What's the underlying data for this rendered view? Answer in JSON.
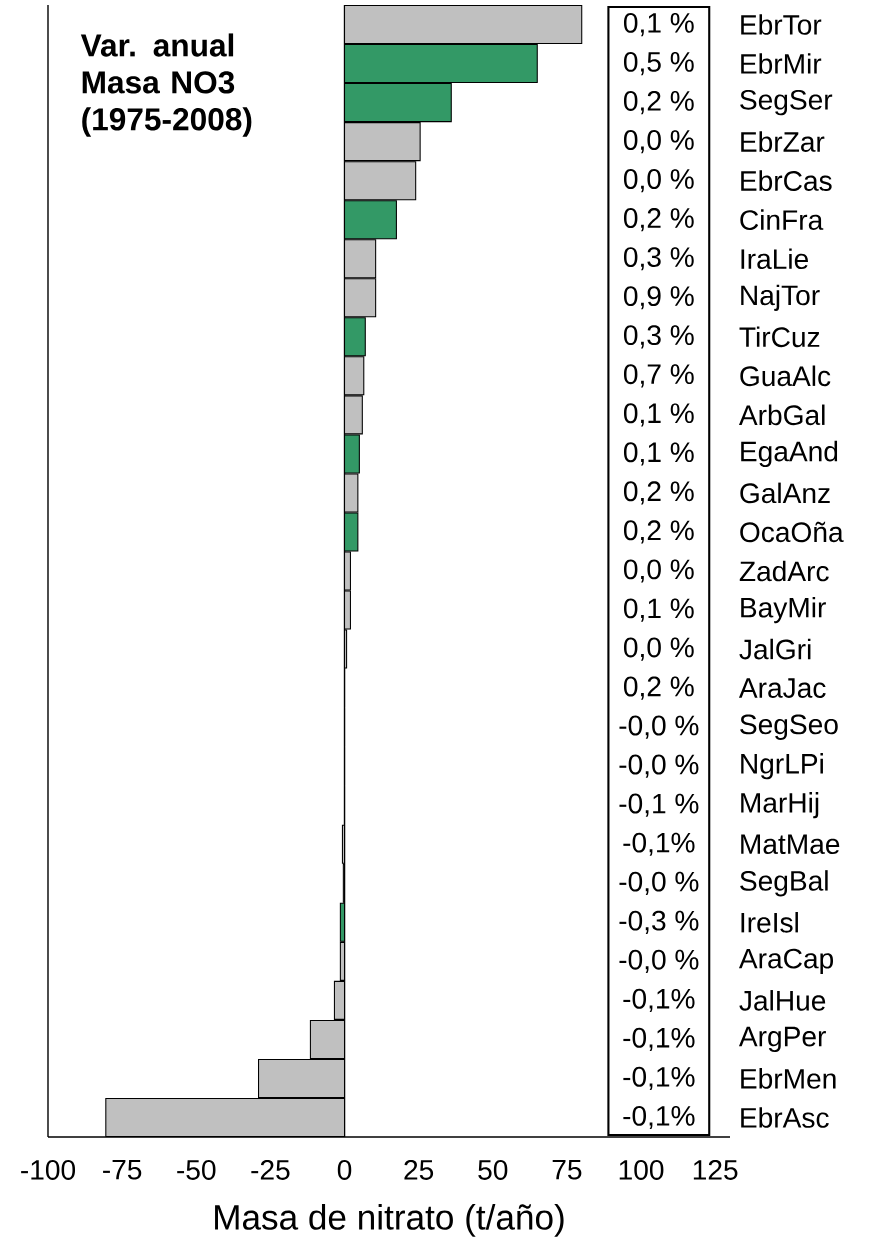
{
  "chart_data": {
    "type": "bar",
    "orientation": "horizontal",
    "title": "Var. anual Masa NO3 (1975-2008)",
    "xlabel": "Masa de nitrato (t/año)",
    "categories": [
      "EbrTor",
      "EbrMir",
      "SegSer",
      "EbrZar",
      "EbrCas",
      "CinFra",
      "IraLie",
      "NajTor",
      "TirCuz",
      "GuaAlc",
      "ArbGal",
      "EgaAnd",
      "GalAnz",
      "OcaOña",
      "ZadArc",
      "BayMir",
      "JalGri",
      "AraJac",
      "SegSeo",
      "NgrLPi",
      "MarHij",
      "MatMae",
      "SegBal",
      "IreIsl",
      "AraCap",
      "JalHue",
      "ArgPer",
      "EbrMen",
      "EbrAsc"
    ],
    "values": [
      80,
      65,
      36,
      25.5,
      24,
      17.5,
      10.5,
      10.5,
      7,
      6.5,
      6,
      5,
      4.5,
      4.5,
      2,
      2,
      0.7,
      0,
      0,
      0,
      0,
      -0.7,
      -0.4,
      -1.4,
      -1.4,
      -3.4,
      -11.5,
      -29,
      -80.5
    ],
    "colors": [
      "#c0c0c0",
      "#339966",
      "#339966",
      "#c0c0c0",
      "#c0c0c0",
      "#339966",
      "#c0c0c0",
      "#c0c0c0",
      "#339966",
      "#c0c0c0",
      "#c0c0c0",
      "#339966",
      "#c0c0c0",
      "#339966",
      "#c0c0c0",
      "#c0c0c0",
      "#c0c0c0",
      "#c0c0c0",
      "#c0c0c0",
      "#c0c0c0",
      "#c0c0c0",
      "#c0c0c0",
      "#c0c0c0",
      "#339966",
      "#c0c0c0",
      "#c0c0c0",
      "#c0c0c0",
      "#c0c0c0",
      "#c0c0c0"
    ],
    "annotations": [
      "0,1 %",
      "0,5 %",
      "0,2 %",
      "0,0 %",
      "0,0 %",
      "0,2 %",
      "0,3 %",
      "0,9 %",
      "0,3 %",
      "0,7 %",
      "0,1 %",
      "0,1 %",
      "0,2 %",
      "0,2 %",
      "0,0 %",
      "0,1 %",
      "0,0 %",
      "0,2 %",
      "-0,0 %",
      "-0,0 %",
      "-0,1 %",
      "-0,1%",
      "-0,0 %",
      "-0,3 %",
      "-0,0 %",
      "-0,1%",
      "-0,1%",
      "-0,1%",
      "-0,1%"
    ],
    "xlim": [
      -100,
      130
    ],
    "xticks": [
      -100,
      -75,
      -50,
      -25,
      0,
      25,
      50,
      75,
      100,
      125
    ]
  }
}
